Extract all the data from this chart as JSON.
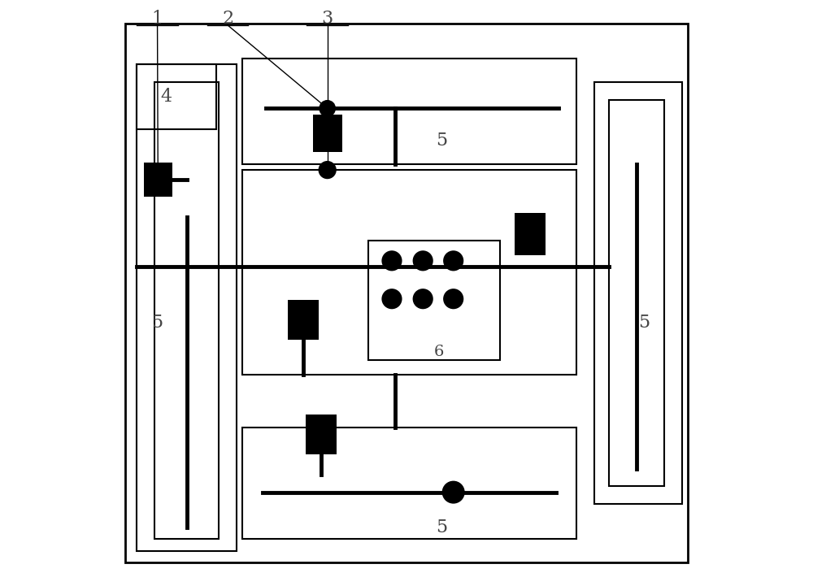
{
  "bg_color": "#ffffff",
  "line_color": "#000000",
  "label_color": "#555555"
}
